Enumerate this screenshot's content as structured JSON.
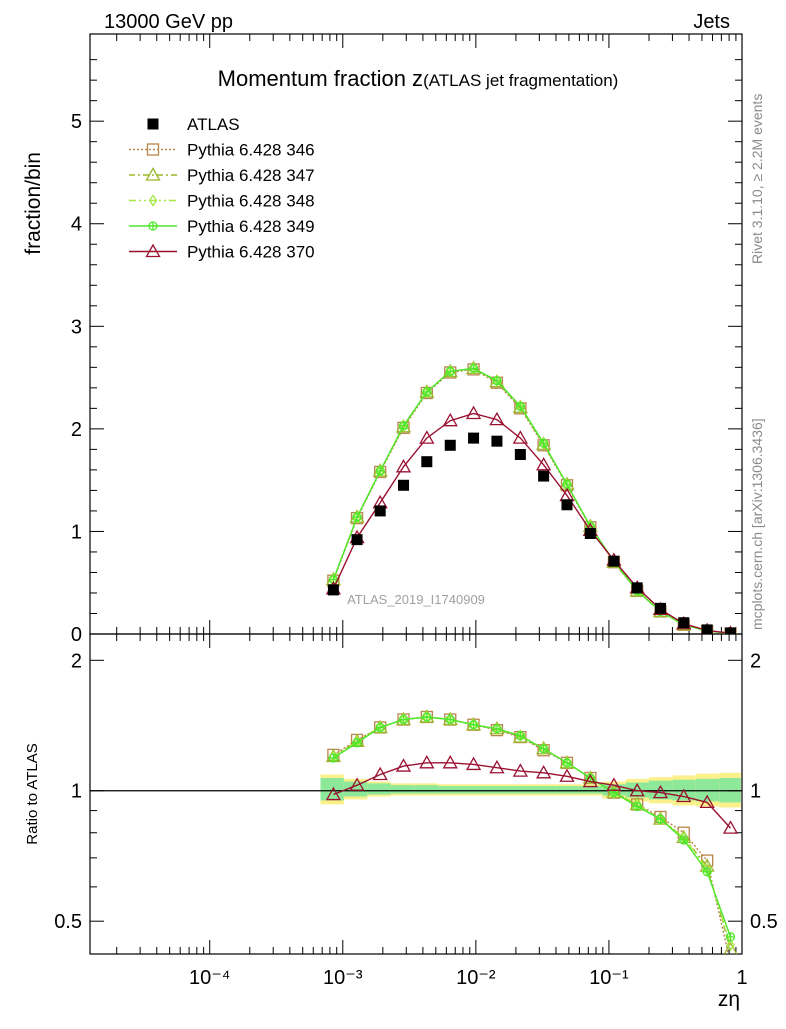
{
  "header": {
    "energy": "13000 GeV pp",
    "process": "Jets"
  },
  "side_labels": {
    "rivet": "Rivet 3.1.10, ≥ 2.2M events",
    "mcplots": "mcplots.cern.ch [arXiv:1306.3436]"
  },
  "chart_data": [
    {
      "type": "line",
      "panel": "main",
      "title_main": "Momentum fraction z",
      "title_sub": "(ATLAS jet fragmentation)",
      "ylabel": "fraction/bin",
      "xlabel": "zη",
      "xscale": "log",
      "xlim": [
        1.26e-05,
        1.0
      ],
      "ylim": [
        0,
        5.85
      ],
      "yticks": [
        0,
        1,
        2,
        3,
        4,
        5
      ],
      "xticks": [
        0.0001,
        0.001,
        0.01,
        0.1,
        1
      ],
      "xtick_labels": [
        "10⁻⁴",
        "10⁻³",
        "10⁻²",
        "10⁻¹",
        "1"
      ],
      "watermark": "ATLAS_2019_I1740909",
      "x": [
        0.00085,
        0.00128,
        0.00191,
        0.00286,
        0.00428,
        0.00642,
        0.00961,
        0.0144,
        0.0216,
        0.0323,
        0.0484,
        0.0725,
        0.109,
        0.163,
        0.244,
        0.365,
        0.547,
        0.82
      ],
      "data": {
        "name": "ATLAS",
        "values": [
          0.43,
          0.92,
          1.2,
          1.45,
          1.68,
          1.84,
          1.91,
          1.88,
          1.75,
          1.54,
          1.26,
          0.98,
          0.71,
          0.45,
          0.25,
          0.11,
          0.04,
          0.01
        ]
      },
      "series": [
        {
          "name": "Pythia 6.428 346",
          "color": "#b8864b",
          "dash": "2,2",
          "marker": "square-open",
          "values": [
            0.52,
            1.13,
            1.58,
            2.01,
            2.35,
            2.55,
            2.58,
            2.45,
            2.2,
            1.84,
            1.45,
            1.04,
            0.7,
            0.42,
            0.22,
            0.09,
            0.03,
            0.005
          ]
        },
        {
          "name": "Pythia 6.428 347",
          "color": "#9ab82a",
          "dash": "6,3,2,3",
          "marker": "triangle-open",
          "values": [
            0.53,
            1.14,
            1.59,
            2.02,
            2.36,
            2.56,
            2.59,
            2.46,
            2.21,
            1.85,
            1.46,
            1.05,
            0.7,
            0.42,
            0.22,
            0.09,
            0.03,
            0.005
          ]
        },
        {
          "name": "Pythia 6.428 348",
          "color": "#a6e844",
          "dash": "7,3,2,3,2,3",
          "marker": "diamond-open",
          "values": [
            0.53,
            1.14,
            1.59,
            2.03,
            2.36,
            2.56,
            2.59,
            2.47,
            2.22,
            1.86,
            1.46,
            1.05,
            0.71,
            0.42,
            0.22,
            0.09,
            0.03,
            0.005
          ]
        },
        {
          "name": "Pythia 6.428 349",
          "color": "#4ee82a",
          "dash": "",
          "marker": "cross-circle",
          "values": [
            0.53,
            1.14,
            1.59,
            2.03,
            2.36,
            2.56,
            2.59,
            2.47,
            2.22,
            1.86,
            1.46,
            1.05,
            0.71,
            0.42,
            0.22,
            0.09,
            0.03,
            0.005
          ]
        },
        {
          "name": "Pythia 6.428 370",
          "color": "#9a1030",
          "dash": "",
          "marker": "triangle-open",
          "values": [
            0.44,
            0.94,
            1.28,
            1.63,
            1.91,
            2.08,
            2.15,
            2.09,
            1.91,
            1.65,
            1.35,
            1.01,
            0.72,
            0.45,
            0.24,
            0.1,
            0.035,
            0.008
          ]
        }
      ]
    },
    {
      "type": "line",
      "panel": "ratio",
      "ylabel": "Ratio to ATLAS",
      "xscale": "log",
      "xlim": [
        1.26e-05,
        1.0
      ],
      "ylim": [
        0.42,
        2.3
      ],
      "yticks": [
        0.5,
        1,
        2
      ],
      "ytick_labels": [
        "0.5",
        "1",
        "2"
      ],
      "band_x_edges": [
        0.00068,
        0.00102,
        0.00153,
        0.0023,
        0.00345,
        0.0052,
        0.0078,
        0.0117,
        0.0176,
        0.0264,
        0.0396,
        0.0594,
        0.089,
        0.134,
        0.2,
        0.3,
        0.45,
        0.675,
        0.98
      ],
      "band_inner": [
        [
          0.95,
          1.07
        ],
        [
          0.97,
          1.05
        ],
        [
          0.98,
          1.04
        ],
        [
          0.985,
          1.03
        ],
        [
          0.985,
          1.03
        ],
        [
          0.985,
          1.025
        ],
        [
          0.985,
          1.025
        ],
        [
          0.985,
          1.025
        ],
        [
          0.985,
          1.025
        ],
        [
          0.985,
          1.025
        ],
        [
          0.985,
          1.025
        ],
        [
          0.985,
          1.025
        ],
        [
          0.975,
          1.035
        ],
        [
          0.965,
          1.045
        ],
        [
          0.955,
          1.055
        ],
        [
          0.95,
          1.06
        ],
        [
          0.945,
          1.065
        ],
        [
          0.94,
          1.07
        ]
      ],
      "band_outer": [
        [
          0.93,
          1.09
        ],
        [
          0.955,
          1.065
        ],
        [
          0.97,
          1.05
        ],
        [
          0.975,
          1.04
        ],
        [
          0.975,
          1.04
        ],
        [
          0.975,
          1.035
        ],
        [
          0.975,
          1.035
        ],
        [
          0.975,
          1.035
        ],
        [
          0.975,
          1.035
        ],
        [
          0.975,
          1.035
        ],
        [
          0.975,
          1.035
        ],
        [
          0.975,
          1.035
        ],
        [
          0.96,
          1.05
        ],
        [
          0.945,
          1.065
        ],
        [
          0.935,
          1.075
        ],
        [
          0.925,
          1.085
        ],
        [
          0.92,
          1.095
        ],
        [
          0.915,
          1.1
        ]
      ],
      "x": [
        0.00085,
        0.00128,
        0.00191,
        0.00286,
        0.00428,
        0.00642,
        0.00961,
        0.0144,
        0.0216,
        0.0323,
        0.0484,
        0.0725,
        0.109,
        0.163,
        0.244,
        0.365,
        0.547,
        0.82
      ],
      "series": [
        {
          "name": "Pythia 6.428 346",
          "values": [
            1.21,
            1.31,
            1.4,
            1.46,
            1.48,
            1.46,
            1.42,
            1.38,
            1.33,
            1.24,
            1.16,
            1.07,
            0.99,
            0.93,
            0.87,
            0.8,
            0.69,
            0.4
          ]
        },
        {
          "name": "Pythia 6.428 347",
          "values": [
            1.2,
            1.3,
            1.4,
            1.46,
            1.48,
            1.46,
            1.42,
            1.39,
            1.33,
            1.25,
            1.16,
            1.07,
            0.99,
            0.93,
            0.86,
            0.78,
            0.67,
            0.43
          ]
        },
        {
          "name": "Pythia 6.428 348",
          "values": [
            1.2,
            1.3,
            1.4,
            1.46,
            1.48,
            1.46,
            1.42,
            1.39,
            1.34,
            1.25,
            1.16,
            1.07,
            0.99,
            0.93,
            0.86,
            0.78,
            0.66,
            0.44
          ]
        },
        {
          "name": "Pythia 6.428 349",
          "values": [
            1.19,
            1.29,
            1.4,
            1.46,
            1.48,
            1.46,
            1.42,
            1.39,
            1.34,
            1.25,
            1.16,
            1.07,
            0.99,
            0.92,
            0.86,
            0.77,
            0.65,
            0.46
          ]
        },
        {
          "name": "Pythia 6.428 370",
          "values": [
            0.98,
            1.03,
            1.09,
            1.14,
            1.16,
            1.16,
            1.15,
            1.13,
            1.11,
            1.1,
            1.08,
            1.05,
            1.03,
            1.0,
            0.99,
            0.97,
            0.94,
            0.82
          ]
        }
      ]
    }
  ]
}
